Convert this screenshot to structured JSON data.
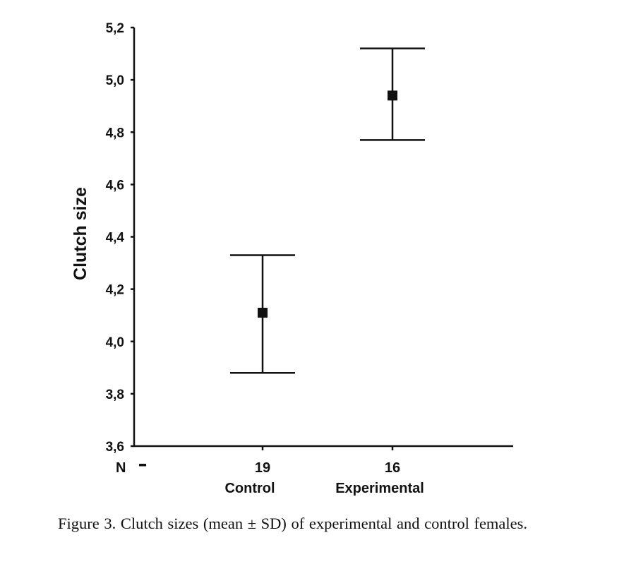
{
  "chart_data": {
    "type": "scatter",
    "ylabel": "Clutch size",
    "y_tick_labels": [
      "3,6",
      "3,8",
      "4,0",
      "4,2",
      "4,4",
      "4,6",
      "4,8",
      "5,0",
      "5,2"
    ],
    "y_ticks": [
      3.6,
      3.8,
      4.0,
      4.2,
      4.4,
      4.6,
      4.8,
      5.0,
      5.2
    ],
    "ylim": [
      3.6,
      5.2
    ],
    "grid": false,
    "n_label": "N",
    "categories": [
      {
        "label": "Control",
        "n": "19",
        "mean": 4.11,
        "sd_low": 3.88,
        "sd_high": 4.33
      },
      {
        "label": "Experimental",
        "n": "16",
        "mean": 4.94,
        "sd_low": 4.77,
        "sd_high": 5.12
      }
    ],
    "colors": {
      "marks": "#111111"
    }
  },
  "caption": {
    "text": "Figure 3. Clutch sizes (mean ± SD) of experimental and control females."
  }
}
